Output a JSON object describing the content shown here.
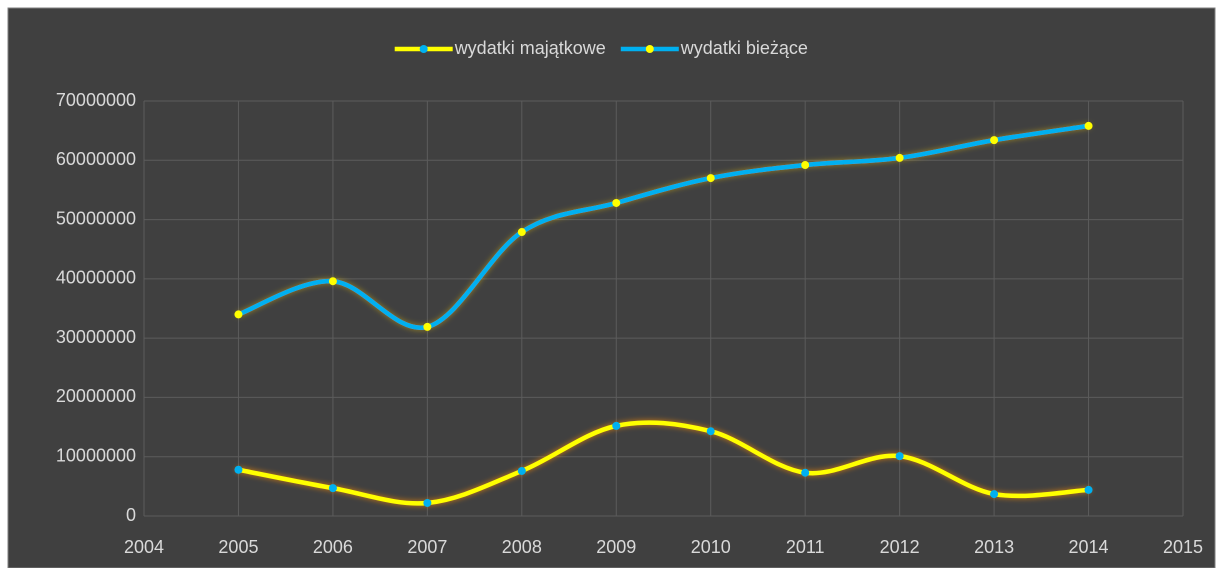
{
  "chart_data": {
    "type": "line",
    "x": [
      2005,
      2006,
      2007,
      2008,
      2009,
      2010,
      2011,
      2012,
      2013,
      2014
    ],
    "series": [
      {
        "name": "wydatki majątkowe",
        "color": "#ffff00",
        "marker_color": "#00b0f0",
        "glow": "#ff8c00",
        "values": [
          7800000,
          4700000,
          2200000,
          7600000,
          15200000,
          14300000,
          7300000,
          10100000,
          3700000,
          4400000
        ]
      },
      {
        "name": "wydatki bieżące",
        "color": "#00b0f0",
        "marker_color": "#ffff00",
        "glow": "#ffd200",
        "values": [
          34000000,
          39600000,
          31900000,
          47900000,
          52800000,
          57000000,
          59200000,
          60400000,
          63400000,
          65800000
        ]
      }
    ],
    "xlim": [
      2004,
      2015
    ],
    "xticks": [
      2004,
      2005,
      2006,
      2007,
      2008,
      2009,
      2010,
      2011,
      2012,
      2013,
      2014,
      2015
    ],
    "ylim": [
      0,
      70000000
    ],
    "yticks": [
      0,
      10000000,
      20000000,
      30000000,
      40000000,
      50000000,
      60000000,
      70000000
    ],
    "grid": true,
    "smooth": true,
    "legend": "top"
  }
}
